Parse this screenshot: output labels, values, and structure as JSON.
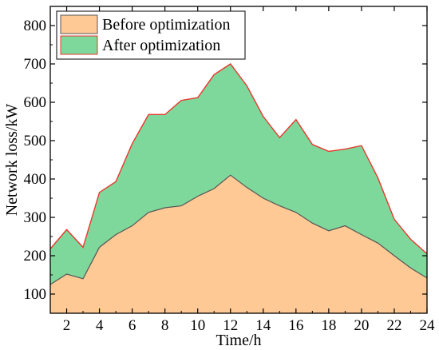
{
  "chart_data": {
    "type": "area",
    "xlabel": "Time/h",
    "ylabel": "Network loss/kW",
    "xlim": [
      1,
      24
    ],
    "ylim": [
      50,
      850
    ],
    "x_ticks": [
      2,
      4,
      6,
      8,
      10,
      12,
      14,
      16,
      18,
      20,
      22,
      24
    ],
    "y_ticks": [
      100,
      200,
      300,
      400,
      500,
      600,
      700,
      800
    ],
    "x_tick_labels": [
      "2",
      "4",
      "6",
      "8",
      "10",
      "12",
      "14",
      "16",
      "18",
      "20",
      "22",
      "24"
    ],
    "y_tick_labels": [
      "100",
      "200",
      "300",
      "400",
      "500",
      "600",
      "700",
      "800"
    ],
    "grid": false,
    "legend_position": "top-left",
    "x": [
      1,
      2,
      3,
      4,
      5,
      6,
      7,
      8,
      9,
      10,
      11,
      12,
      13,
      14,
      15,
      16,
      17,
      18,
      19,
      20,
      21,
      22,
      23,
      24
    ],
    "series": [
      {
        "name": "Before optimization",
        "fill": "#fec994",
        "line": "#555555",
        "values": [
          125,
          152,
          140,
          222,
          255,
          278,
          313,
          325,
          330,
          355,
          375,
          410,
          378,
          350,
          330,
          313,
          285,
          265,
          278,
          255,
          233,
          200,
          168,
          142
        ]
      },
      {
        "name": "After optimization",
        "fill": "#7fd89b",
        "line": "#e8382d",
        "values": [
          218,
          268,
          222,
          365,
          393,
          492,
          568,
          568,
          605,
          612,
          672,
          700,
          643,
          563,
          508,
          555,
          490,
          472,
          478,
          487,
          403,
          295,
          243,
          205
        ]
      }
    ]
  }
}
